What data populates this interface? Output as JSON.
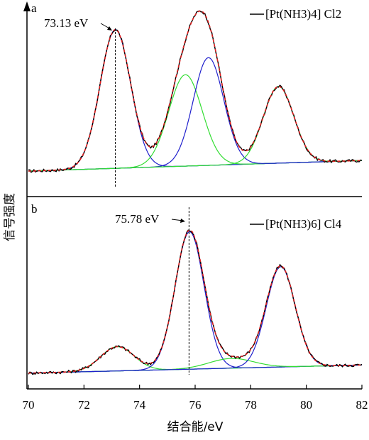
{
  "chart_data": [
    {
      "type": "line",
      "panel_label": "a",
      "legend_label": "[Pt(NH3)4] Cl2",
      "peak_annotation": "73.13 eV",
      "peak_line_x": 73.13,
      "xlim": [
        70,
        82
      ],
      "baseline": {
        "left": 0.03,
        "right": 0.095
      },
      "components": [
        {
          "color": "#1f1fcc",
          "center": 73.13,
          "amp": 0.85,
          "sigma": 0.55
        },
        {
          "color": "#33dd33",
          "center": 75.65,
          "amp": 0.56,
          "sigma": 0.6
        },
        {
          "color": "#1f1fcc",
          "center": 76.48,
          "amp": 0.66,
          "sigma": 0.55
        },
        {
          "color": "#33dd33",
          "center": 79.0,
          "amp": 0.47,
          "sigma": 0.55
        }
      ]
    },
    {
      "type": "line",
      "panel_label": "b",
      "legend_label": "[Pt(NH3)6] Cl4",
      "peak_annotation": "75.78 eV",
      "peak_line_x": 75.78,
      "xlim": [
        70,
        82
      ],
      "baseline": {
        "left": 0.01,
        "right": 0.06
      },
      "components": [
        {
          "color": "#33dd33",
          "center": 73.2,
          "amp": 0.15,
          "sigma": 0.6
        },
        {
          "color": "#1f1fcc",
          "center": 75.8,
          "amp": 0.85,
          "sigma": 0.52
        },
        {
          "color": "#33dd33",
          "center": 77.3,
          "amp": 0.06,
          "sigma": 0.8
        },
        {
          "color": "#1f1fcc",
          "center": 79.08,
          "amp": 0.62,
          "sigma": 0.52
        }
      ]
    }
  ],
  "axes": {
    "xlabel": "结合能/eV",
    "ylabel": "信号强度",
    "xticks": [
      70,
      72,
      74,
      76,
      78,
      80,
      82
    ]
  },
  "colors": {
    "measured": "#000000",
    "fit_envelope": "#e02020",
    "background": "#20d0d0",
    "component_blue": "#1f1fcc",
    "component_green": "#33dd33"
  }
}
